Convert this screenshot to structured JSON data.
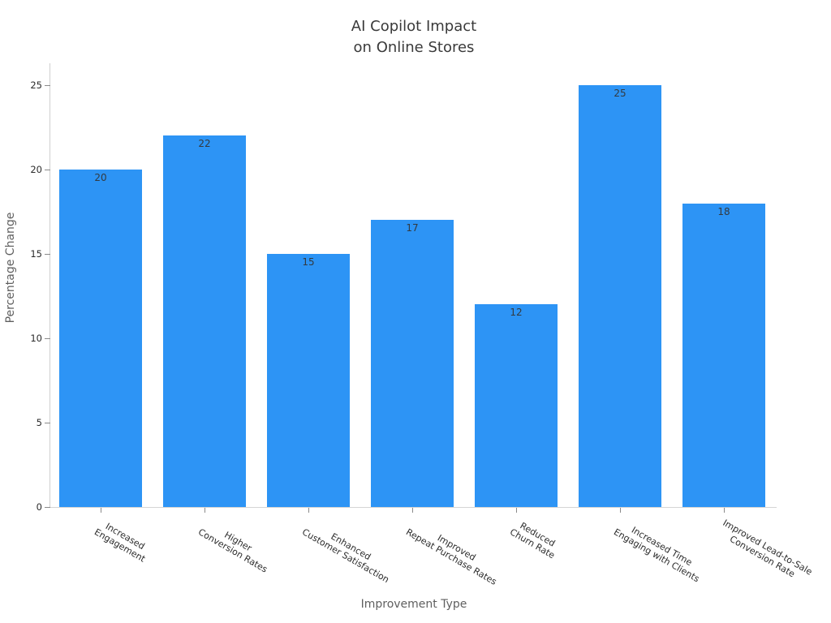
{
  "chart_data": {
    "type": "bar",
    "title": "AI Copilot Impact\non Online Stores",
    "xlabel": "Improvement Type",
    "ylabel": "Percentage Change",
    "categories": [
      "Increased\nEngagement",
      "Higher\nConversion Rates",
      "Enhanced\nCustomer Satisfaction",
      "Improved\nRepeat Purchase Rates",
      "Reduced\nChurn Rate",
      "Increased Time\nEngaging with Clients",
      "Improved Lead-to-Sale\nConversion Rate"
    ],
    "values": [
      20,
      22,
      15,
      17,
      12,
      25,
      18
    ],
    "yticks": [
      0,
      5,
      10,
      15,
      20,
      25
    ],
    "ylim": [
      0,
      26.3
    ],
    "grid": false,
    "legend": false,
    "bar_color": "#2d94f5",
    "value_labels_shown": true
  },
  "colors": {
    "background": "#ffffff",
    "title_text": "#3a3a3a",
    "axis_title_text": "#5f5f5f",
    "tick_label_text": "#2b2b2b",
    "value_label_text": "#333a40",
    "spine": "#cfcfcf",
    "tick_mark": "#8a8a8a"
  }
}
